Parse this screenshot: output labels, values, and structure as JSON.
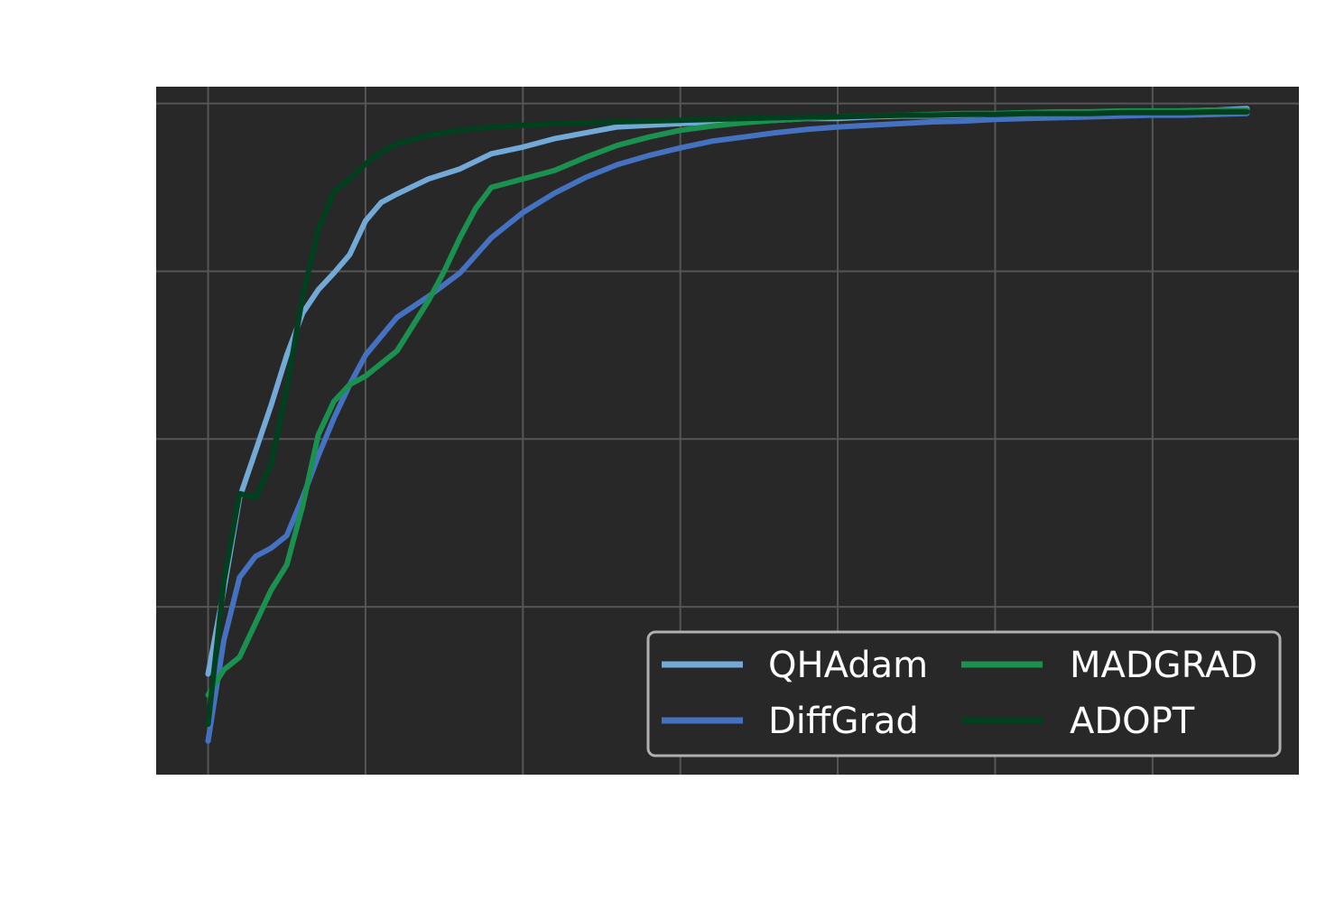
{
  "chart_data": {
    "type": "line",
    "title": "",
    "xlabel": "",
    "ylabel": "",
    "xlim": [
      -3.3,
      69.3
    ],
    "ylim": [
      0.0,
      8.2
    ],
    "x_grid": [
      0,
      10,
      20,
      30,
      40,
      50,
      60
    ],
    "y_grid": [
      2.0,
      4.0,
      6.0,
      8.0
    ],
    "grid": true,
    "legend": "lower-right",
    "background": "#282828",
    "series": [
      {
        "name": "QHAdam",
        "color": "#72a9d6",
        "x": [
          0,
          1,
          2,
          3,
          4,
          5,
          6,
          7,
          8,
          9,
          10,
          11,
          12,
          14,
          16,
          18,
          20,
          22,
          24,
          26,
          28,
          30,
          32,
          34,
          36,
          38,
          40,
          42,
          44,
          46,
          48,
          50,
          52,
          54,
          56,
          58,
          60,
          62,
          64,
          66
        ],
        "y": [
          1.2,
          2.2,
          3.3,
          3.85,
          4.4,
          5.0,
          5.5,
          5.78,
          5.98,
          6.2,
          6.6,
          6.82,
          6.92,
          7.1,
          7.22,
          7.4,
          7.48,
          7.58,
          7.65,
          7.72,
          7.74,
          7.76,
          7.78,
          7.8,
          7.8,
          7.82,
          7.82,
          7.84,
          7.85,
          7.85,
          7.86,
          7.87,
          7.88,
          7.88,
          7.89,
          7.9,
          7.9,
          7.91,
          7.92,
          7.94
        ]
      },
      {
        "name": "DiffGrad",
        "color": "#4472c0",
        "x": [
          0,
          1,
          2,
          3,
          4,
          5,
          6,
          7,
          8,
          9,
          10,
          12,
          14,
          16,
          18,
          20,
          22,
          24,
          26,
          28,
          30,
          32,
          34,
          36,
          38,
          40,
          42,
          44,
          46,
          48,
          50,
          52,
          54,
          56,
          58,
          60,
          62,
          64,
          66
        ],
        "y": [
          0.4,
          1.6,
          2.35,
          2.6,
          2.7,
          2.85,
          3.3,
          3.8,
          4.25,
          4.65,
          5.0,
          5.45,
          5.7,
          5.98,
          6.4,
          6.7,
          6.93,
          7.12,
          7.27,
          7.38,
          7.47,
          7.55,
          7.6,
          7.65,
          7.69,
          7.72,
          7.74,
          7.76,
          7.78,
          7.79,
          7.81,
          7.82,
          7.83,
          7.84,
          7.85,
          7.86,
          7.86,
          7.87,
          7.88
        ]
      },
      {
        "name": "MADGRAD",
        "color": "#1b9150",
        "x": [
          0,
          1,
          2,
          3,
          4,
          5,
          6,
          7,
          8,
          9,
          10,
          12,
          14,
          15,
          16,
          17,
          18,
          19,
          20,
          22,
          24,
          26,
          28,
          30,
          32,
          34,
          36,
          38,
          40,
          42,
          44,
          46,
          48,
          50,
          52,
          54,
          56,
          58,
          60,
          62,
          64,
          66
        ],
        "y": [
          0.95,
          1.25,
          1.4,
          1.8,
          2.2,
          2.5,
          3.2,
          4.05,
          4.45,
          4.65,
          4.75,
          5.05,
          5.65,
          6.0,
          6.4,
          6.75,
          7.0,
          7.05,
          7.1,
          7.2,
          7.36,
          7.5,
          7.6,
          7.68,
          7.73,
          7.77,
          7.8,
          7.82,
          7.84,
          7.85,
          7.86,
          7.87,
          7.88,
          7.88,
          7.89,
          7.9,
          7.9,
          7.91,
          7.91,
          7.91,
          7.92,
          7.92
        ]
      },
      {
        "name": "ADOPT",
        "color": "#01401e",
        "x": [
          0,
          1,
          2,
          3,
          4,
          5,
          6,
          7,
          8,
          9,
          10,
          11,
          12,
          14,
          16,
          18,
          20,
          22,
          24,
          26,
          28,
          30,
          32,
          34,
          36,
          38,
          40,
          42,
          44,
          46,
          48,
          50,
          52,
          54,
          56,
          58,
          60,
          62,
          64,
          66
        ],
        "y": [
          0.6,
          2.3,
          3.35,
          3.3,
          3.7,
          4.6,
          5.7,
          6.5,
          6.95,
          7.1,
          7.28,
          7.42,
          7.52,
          7.62,
          7.68,
          7.72,
          7.74,
          7.76,
          7.77,
          7.78,
          7.79,
          7.8,
          7.81,
          7.82,
          7.83,
          7.84,
          7.84,
          7.85,
          7.86,
          7.86,
          7.87,
          7.87,
          7.88,
          7.88,
          7.88,
          7.89,
          7.89,
          7.89,
          7.9,
          7.9
        ]
      }
    ]
  }
}
